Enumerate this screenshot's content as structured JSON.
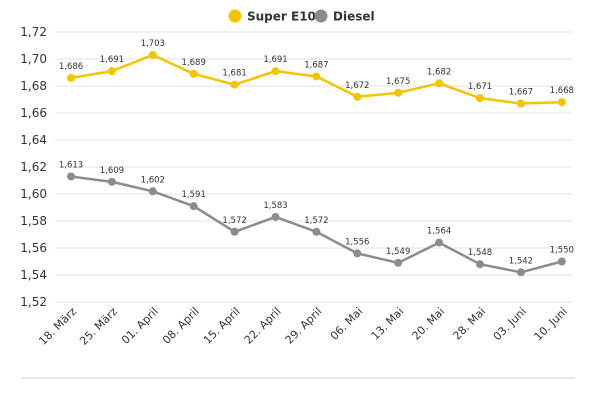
{
  "chart_data": {
    "type": "line",
    "categories": [
      "18. März",
      "25. März",
      "01. April",
      "08. April",
      "15. April",
      "22. April",
      "29. April",
      "06. Mai",
      "13. Mai",
      "20. Mai",
      "28. Mai",
      "03. Juni",
      "10. Juni"
    ],
    "series": [
      {
        "name": "Super E10",
        "color": "#f5c400",
        "values": [
          1.686,
          1.691,
          1.703,
          1.689,
          1.681,
          1.691,
          1.687,
          1.672,
          1.675,
          1.682,
          1.671,
          1.667,
          1.668
        ],
        "labels": [
          "1,686",
          "1,691",
          "1,703",
          "1,689",
          "1,681",
          "1,691",
          "1,687",
          "1,672",
          "1,675",
          "1,682",
          "1,671",
          "1,667",
          "1,668"
        ]
      },
      {
        "name": "Diesel",
        "color": "#8c8c8c",
        "values": [
          1.613,
          1.609,
          1.602,
          1.591,
          1.572,
          1.583,
          1.572,
          1.556,
          1.549,
          1.564,
          1.548,
          1.542,
          1.55
        ],
        "labels": [
          "1,613",
          "1,609",
          "1,602",
          "1,591",
          "1,572",
          "1,583",
          "1,572",
          "1,556",
          "1,549",
          "1,564",
          "1,548",
          "1,542",
          "1,550"
        ]
      }
    ],
    "yticks": [
      1.72,
      1.7,
      1.68,
      1.66,
      1.64,
      1.62,
      1.6,
      1.58,
      1.56,
      1.54,
      1.52
    ],
    "ytick_labels": [
      "1,72",
      "1,70",
      "1,68",
      "1,66",
      "1,64",
      "1,62",
      "1,60",
      "1,58",
      "1,56",
      "1,54",
      "1,52"
    ],
    "ylim": [
      1.52,
      1.72
    ],
    "grid": true,
    "legend": "top-center",
    "title": "",
    "xlabel": "",
    "ylabel": ""
  }
}
